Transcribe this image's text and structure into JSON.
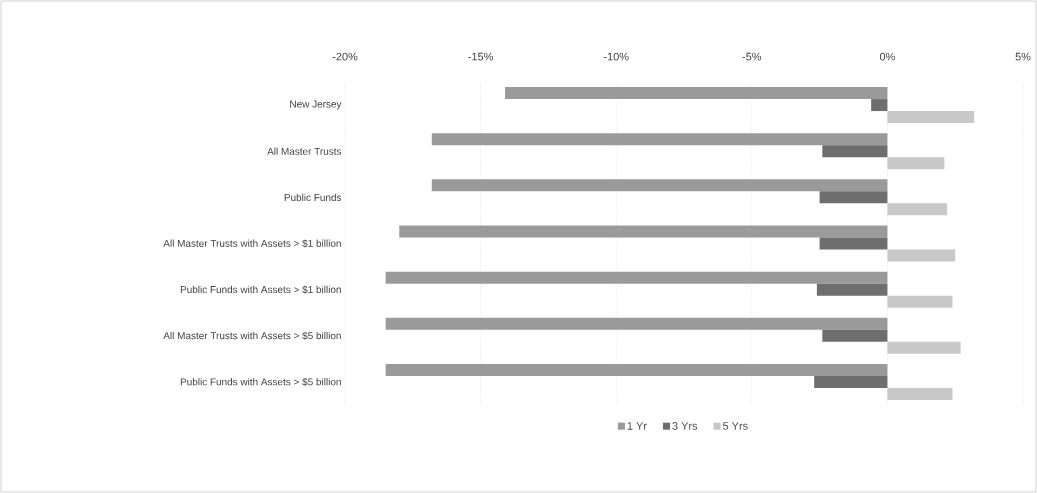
{
  "chart_data": {
    "type": "bar",
    "orientation": "horizontal",
    "categories": [
      "New Jersey",
      "All Master Trusts",
      "Public Funds",
      "All Master Trusts with Assets > $1 billion",
      "Public Funds with Assets > $1 billion",
      "All Master Trusts with Assets > $5 billion",
      "Public Funds with Assets > $5 billion"
    ],
    "series": [
      {
        "name": "1 Yr",
        "color": "#9a9a9a",
        "values": [
          -14.1,
          -16.8,
          -16.8,
          -18.0,
          -18.5,
          -18.5,
          -18.5
        ]
      },
      {
        "name": "3 Yrs",
        "color": "#6e6e6e",
        "values": [
          -0.6,
          -2.4,
          -2.5,
          -2.5,
          -2.6,
          -2.4,
          -2.7
        ]
      },
      {
        "name": "5 Yrs",
        "color": "#c8c8c8",
        "values": [
          3.2,
          2.1,
          2.2,
          2.5,
          2.4,
          2.7,
          2.4
        ]
      }
    ],
    "xlim": [
      -20,
      5
    ],
    "xticks": [
      {
        "value": -20,
        "label": "-20%"
      },
      {
        "value": -15,
        "label": "-15%"
      },
      {
        "value": -10,
        "label": "-10%"
      },
      {
        "value": -5,
        "label": "-5%"
      },
      {
        "value": 0,
        "label": "0%"
      },
      {
        "value": 5,
        "label": "5%"
      }
    ],
    "grid": "x",
    "legend": "bottom"
  }
}
